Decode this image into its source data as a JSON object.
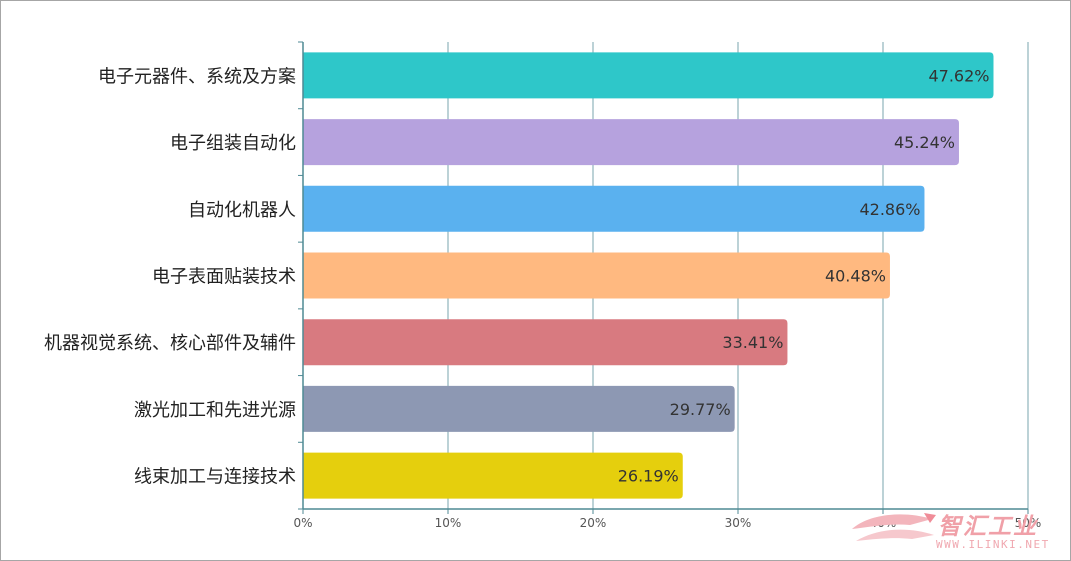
{
  "chart_data": {
    "type": "bar",
    "orientation": "horizontal",
    "categories": [
      "电子元器件、系统及方案",
      "电子组装自动化",
      "自动化机器人",
      "电子表面贴装技术",
      "机器视觉系统、核心部件及辅件",
      "激光加工和先进光源",
      "线束加工与连接技术"
    ],
    "values": [
      47.62,
      45.24,
      42.86,
      40.48,
      33.41,
      29.77,
      26.19
    ],
    "value_labels": [
      "47.62%",
      "45.24%",
      "42.86%",
      "40.48%",
      "33.41%",
      "29.77%",
      "26.19%"
    ],
    "colors": [
      "#2ec7c9",
      "#b6a2de",
      "#5ab1ef",
      "#ffb980",
      "#d87a80",
      "#8d98b3",
      "#e5cf0d"
    ],
    "xlim": [
      0,
      50
    ],
    "x_ticks": [
      0,
      10,
      20,
      30,
      40,
      50
    ],
    "x_tick_labels": [
      "0%",
      "10%",
      "20%",
      "30%",
      "40%",
      "50%"
    ],
    "title": "",
    "xlabel": "",
    "ylabel": "",
    "grid": true,
    "legend": "none"
  },
  "watermark": {
    "brand_text": "智汇工业",
    "url_text": "WWW.ILINKI.NET"
  }
}
